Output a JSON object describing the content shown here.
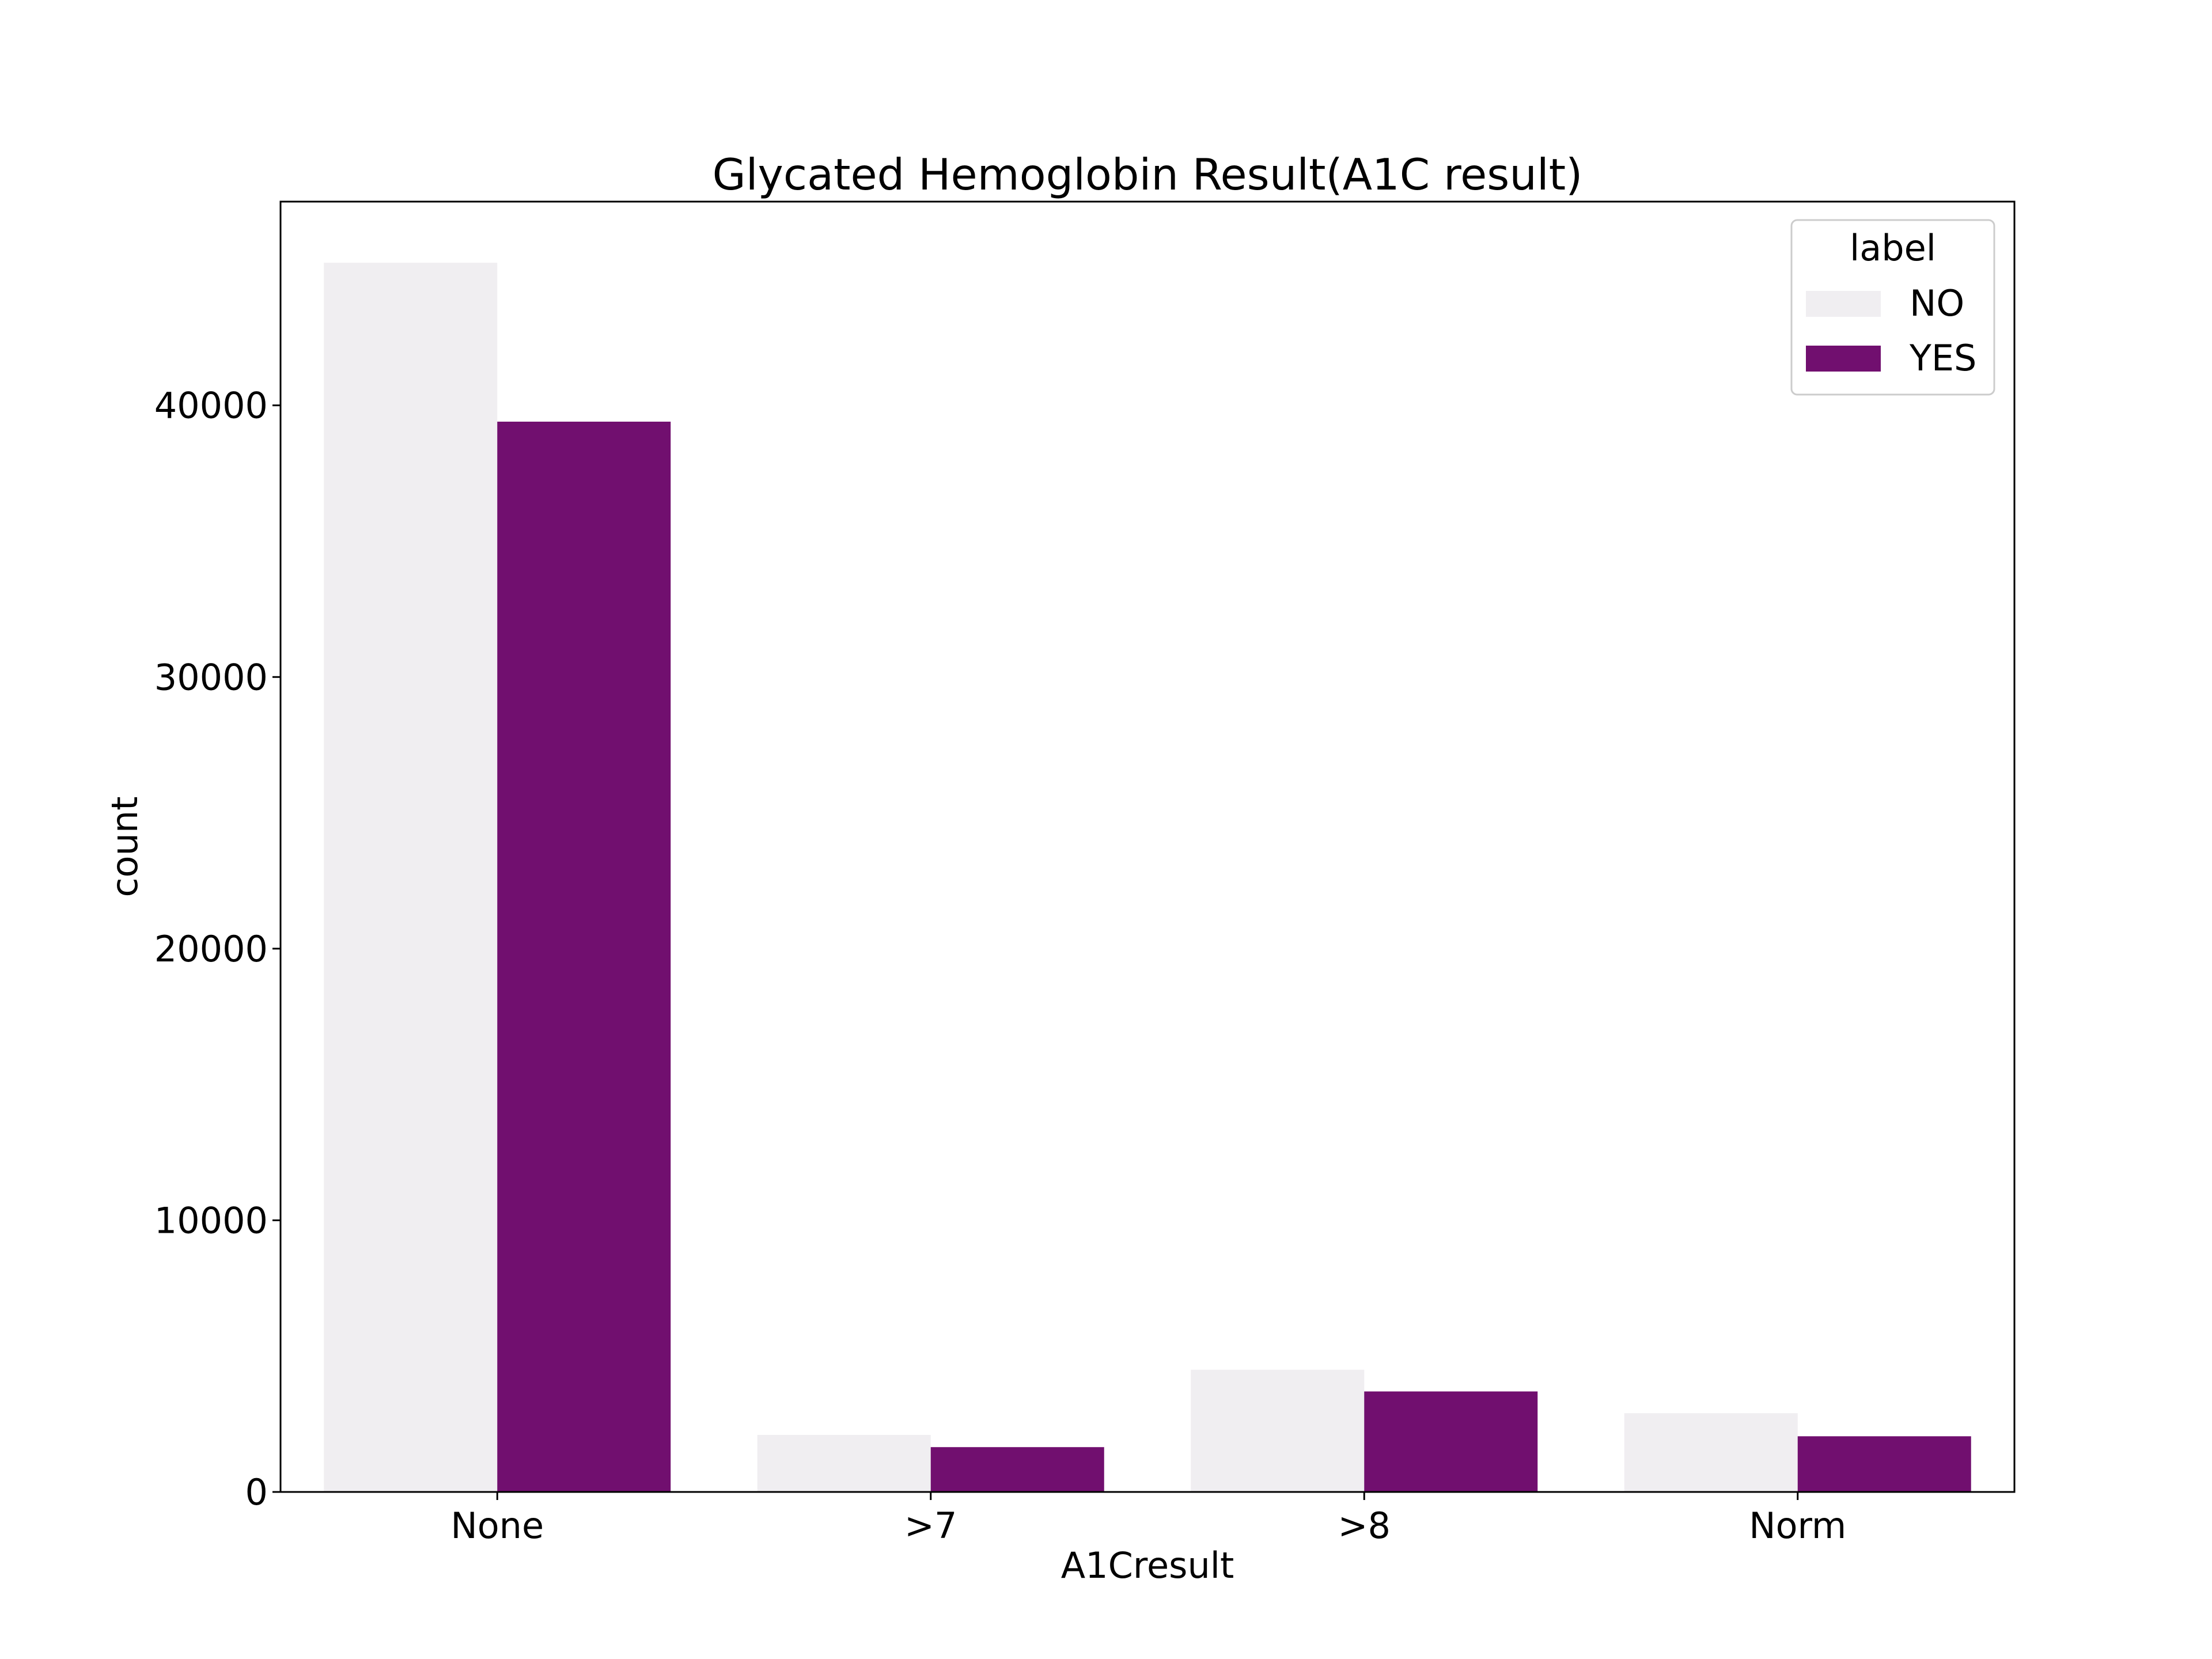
{
  "chart_data": {
    "type": "bar",
    "title": "Glycated Hemoglobin Result(A1C result)",
    "xlabel": "A1Cresult",
    "ylabel": "count",
    "categories": [
      "None",
      ">7",
      ">8",
      "Norm"
    ],
    "series": [
      {
        "name": "NO",
        "values": [
          45250,
          2100,
          4500,
          2900
        ],
        "color": "#f0eef1"
      },
      {
        "name": "YES",
        "values": [
          39400,
          1650,
          3700,
          2050
        ],
        "color": "#710f6f"
      }
    ],
    "ylim": [
      0,
      47500
    ],
    "yticks": [
      0,
      10000,
      20000,
      30000,
      40000
    ],
    "grid": false,
    "legend": {
      "title": "label",
      "position": "top-right"
    }
  }
}
